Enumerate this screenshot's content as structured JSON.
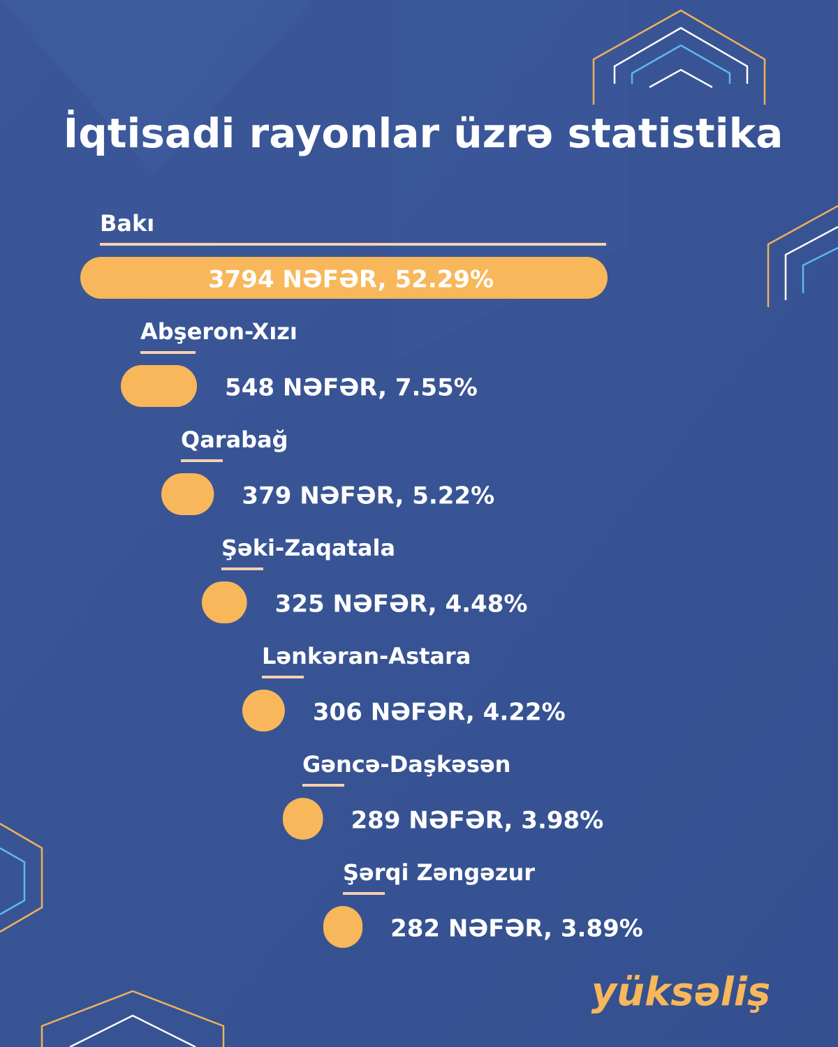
{
  "chart_data": {
    "type": "bar",
    "title": "İqtisadi rayonlar üzrə statistika",
    "categories": [
      "Bakı",
      "Abşeron-Xızı",
      "Qarabağ",
      "Şəki-Zaqatala",
      "Lənkəran-Astara",
      "Gəncə-Daşkəsən",
      "Şərqi Zəngəzur"
    ],
    "values": [
      3794,
      548,
      379,
      325,
      306,
      289,
      282
    ],
    "value_labels": [
      "3794 NƏFƏR, 52.29%",
      "548 NƏFƏR, 7.55%",
      "379 NƏFƏR, 5.22%",
      "325 NƏFƏR, 4.48%",
      "306 NƏFƏR, 4.22%",
      "289 NƏFƏR, 3.98%",
      "282 NƏFƏR, 3.89%"
    ],
    "color": "#f8b75a"
  },
  "logo": "yüksəliş"
}
